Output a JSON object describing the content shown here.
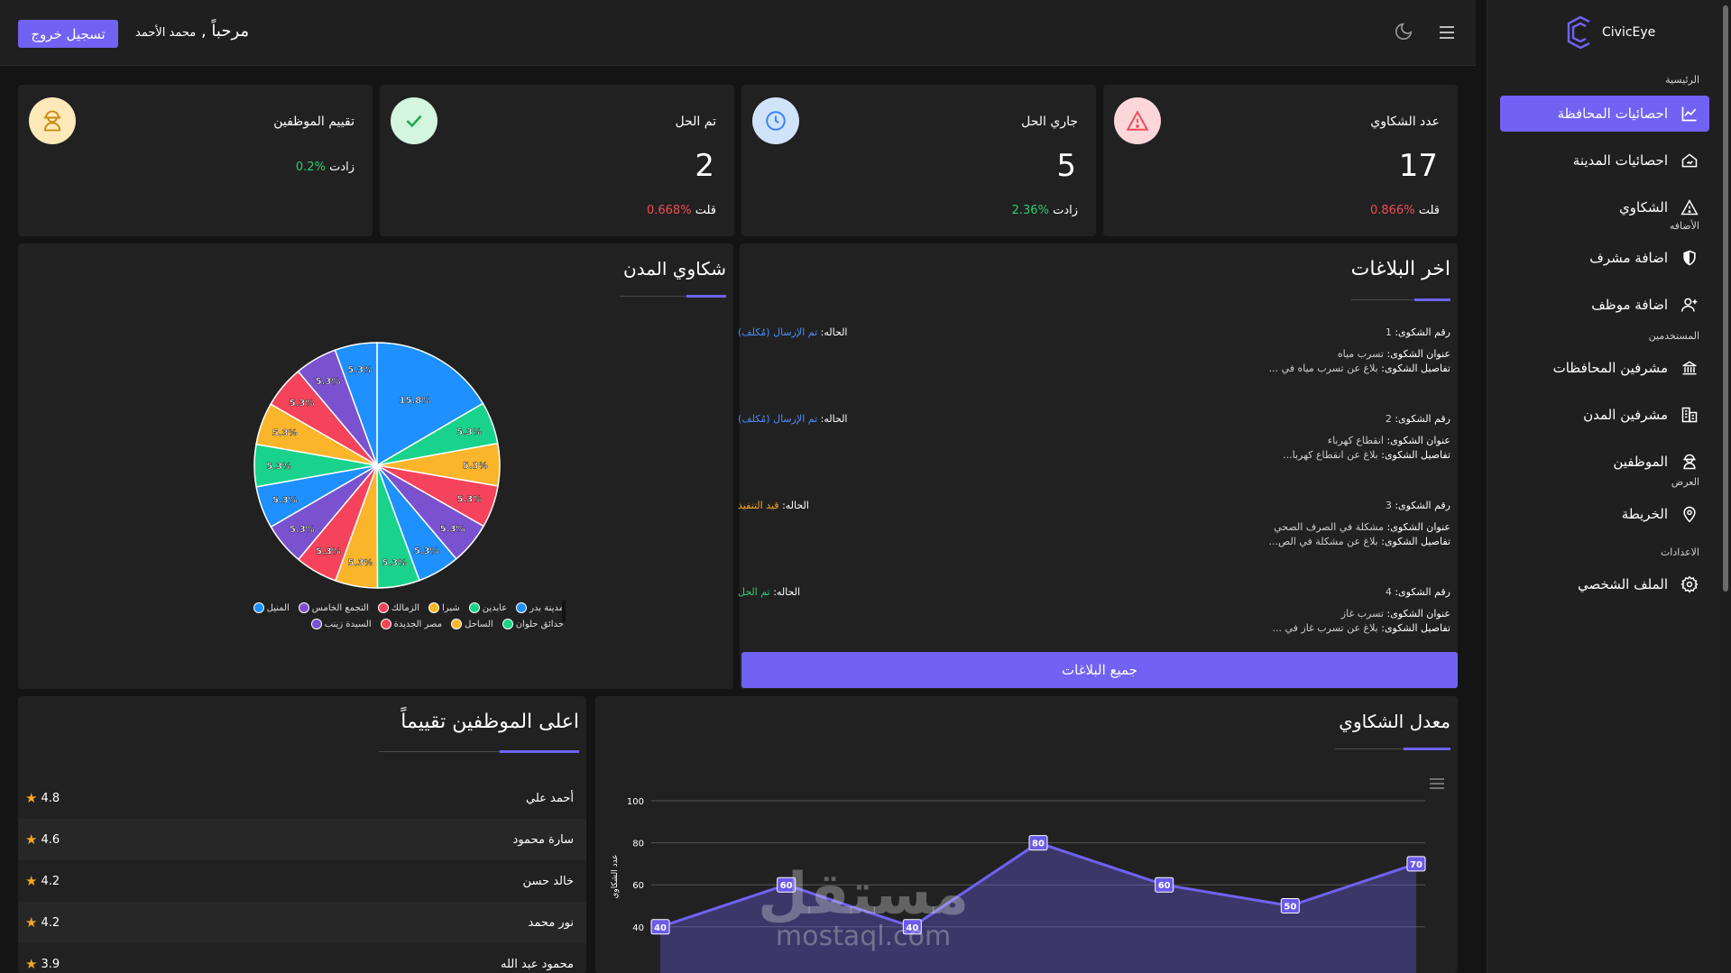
{
  "app": {
    "brand": "CivicEye",
    "accent": "#7062f2"
  },
  "header": {
    "logout": "تسجيل خروج",
    "welcome": "مرحباً ,",
    "user_name": "محمد الأحمد"
  },
  "sidebar": {
    "sections": [
      {
        "title": "الرئيسية",
        "items": [
          {
            "label": "احصائيات المحافظة",
            "icon": "chart-line-icon",
            "active": true
          },
          {
            "label": "احصائيات المدينة",
            "icon": "home-chart-icon"
          },
          {
            "label": "الشكاوي",
            "icon": "warning-triangle-icon"
          }
        ]
      },
      {
        "title": "الأضافه",
        "items": [
          {
            "label": "اضافة مشرف",
            "icon": "shield-icon"
          },
          {
            "label": "اضافة موظف",
            "icon": "user-plus-icon"
          }
        ]
      },
      {
        "title": "المستخدمين",
        "items": [
          {
            "label": "مشرفين المحافظات",
            "icon": "building-columns-icon"
          },
          {
            "label": "مشرفين المدن",
            "icon": "buildings-icon"
          },
          {
            "label": "الموظفين",
            "icon": "worker-icon"
          }
        ]
      },
      {
        "title": "العرض",
        "items": [
          {
            "label": "الخريطة",
            "icon": "map-pin-icon"
          }
        ]
      },
      {
        "title": "الاعدادات",
        "items": [
          {
            "label": "الملف الشخصي",
            "icon": "gear-icon"
          }
        ]
      }
    ]
  },
  "stats": [
    {
      "title": "عدد الشكاوي",
      "value": "17",
      "change_word": "قلت",
      "change": "%0.866",
      "trend": "down",
      "icon": "alert-triangle-icon",
      "icon_bg": "#fcd7da",
      "icon_color": "#f24b56"
    },
    {
      "title": "جاري الحل",
      "value": "5",
      "change_word": "زادت",
      "change": "%2.36",
      "trend": "up",
      "icon": "clock-icon",
      "icon_bg": "#cfe3fb",
      "icon_color": "#3b82f6"
    },
    {
      "title": "تم الحل",
      "value": "2",
      "change_word": "قلت",
      "change": "%0.668",
      "trend": "down",
      "icon": "check-icon",
      "icon_bg": "#d4f5de",
      "icon_color": "#22a755"
    },
    {
      "title": "تقييم الموظفين",
      "value": "",
      "change_word": "زادت",
      "change": "%0.2",
      "trend": "up",
      "icon": "worker-icon",
      "icon_bg": "#fde9b8",
      "icon_color": "#c78a10"
    }
  ],
  "reports": {
    "title": "اخر البلاغات",
    "labels": {
      "number": "رقم الشكوى:",
      "title": "عنوان الشكوى:",
      "details": "تفاصيل الشكوى:",
      "status": "الحاله:"
    },
    "items": [
      {
        "number": "1",
        "title": "تسرب مياه",
        "details": "بلاغ عن تسرب مياه في ...",
        "status": "تم الإرسال (مُكلف)",
        "status_color": "#4a8cf7"
      },
      {
        "number": "2",
        "title": "انقطاع كهرباء",
        "details": "بلاغ عن انقطاع كهربا...",
        "status": "تم الإرسال (مُكلف)",
        "status_color": "#4a8cf7"
      },
      {
        "number": "3",
        "title": "مشكلة في الصرف الصحي",
        "details": "بلاغ عن مشكلة في الص...",
        "status": "قيد التنفيذ",
        "status_color": "#f5a623"
      },
      {
        "number": "4",
        "title": "تسرب غاز",
        "details": "بلاغ عن تسرب غاز في ...",
        "status": "تم الحل",
        "status_color": "#2ecc71"
      }
    ],
    "all_button": "جميع البلاغات"
  },
  "cities_chart": {
    "title": "شكاوي المدن",
    "chart_data": {
      "type": "pie",
      "slice_labels": [
        "15.8%",
        "5.3%",
        "5.3%",
        "5.3%",
        "5.3%",
        "5.3%",
        "5.3%",
        "5.3%",
        "5.3%",
        "5.3%",
        "5.3%",
        "5.3%",
        "5.3%",
        "5.3%",
        "5.3%",
        "5.3%"
      ],
      "values": [
        15.8,
        5.3,
        5.3,
        5.3,
        5.3,
        5.3,
        5.3,
        5.3,
        5.3,
        5.3,
        5.3,
        5.3,
        5.3,
        5.3,
        5.3,
        5.3
      ],
      "colors": [
        "#1e90ff",
        "#19d38c",
        "#fbb52b",
        "#f4435b",
        "#7a52d0",
        "#1e90ff",
        "#19d38c",
        "#fbb52b",
        "#f4435b",
        "#7a52d0",
        "#1e90ff",
        "#19d38c",
        "#fbb52b",
        "#f4435b",
        "#7a52d0",
        "#1e90ff"
      ],
      "legend": [
        {
          "name": "مدينة بدر",
          "color": "#1e90ff"
        },
        {
          "name": "عابدين",
          "color": "#19d38c"
        },
        {
          "name": "شبرا",
          "color": "#fbb52b"
        },
        {
          "name": "الزمالك",
          "color": "#f4435b"
        },
        {
          "name": "التجمع الخامس",
          "color": "#7a52d0"
        },
        {
          "name": "المنيل",
          "color": "#1e90ff"
        },
        {
          "name": "حدائق حلوان",
          "color": "#19d38c"
        },
        {
          "name": "الساحل",
          "color": "#fbb52b"
        },
        {
          "name": "مصر الجديدة",
          "color": "#f4435b"
        },
        {
          "name": "السيدة زينب",
          "color": "#7a52d0"
        }
      ]
    }
  },
  "top_employees": {
    "title": "اعلى الموظفين تقييماً",
    "rows": [
      {
        "name": "أحمد علي",
        "rating": "4.8"
      },
      {
        "name": "سارة محمود",
        "rating": "4.6"
      },
      {
        "name": "خالد حسن",
        "rating": "4.2"
      },
      {
        "name": "نور محمد",
        "rating": "4.2"
      },
      {
        "name": "محمود عبد الله",
        "rating": "3.9"
      }
    ]
  },
  "complaints_rate": {
    "title": "معدل الشكاوي",
    "chart_data": {
      "type": "area",
      "ylabel": "عدد الشكاوي",
      "y_ticks": [
        "100",
        "80",
        "60",
        "40"
      ],
      "ylim": [
        0,
        100
      ],
      "values": [
        40,
        60,
        40,
        80,
        60,
        50,
        70
      ],
      "value_labels": [
        "40",
        "60",
        "40",
        "80",
        "60",
        "50",
        "70"
      ],
      "line_color": "#7062f2"
    }
  },
  "watermark": {
    "ar": "مستقل",
    "en": "mostaql.com"
  }
}
